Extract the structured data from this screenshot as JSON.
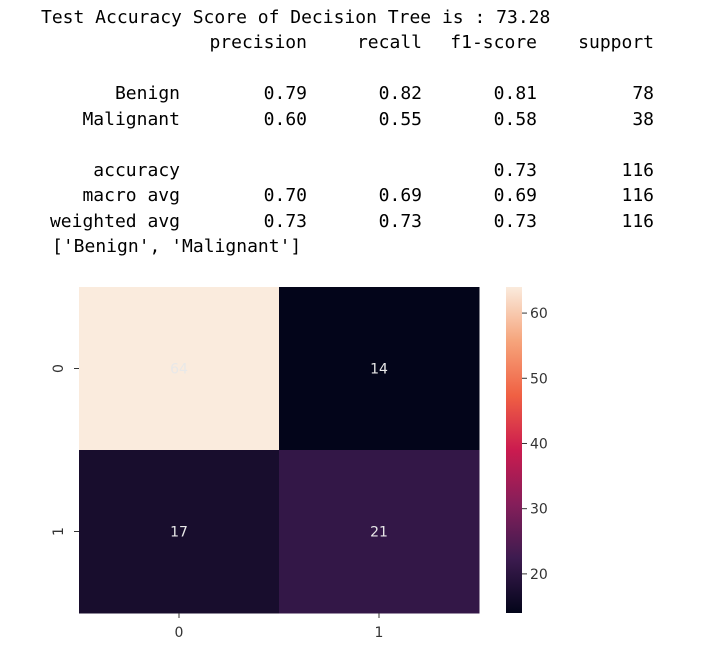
{
  "output": {
    "accuracy_line": "Test Accuracy Score of Decision Tree is : 73.28",
    "headers": [
      "precision",
      "recall",
      "f1-score",
      "support"
    ],
    "rows": [
      {
        "label": "Benign",
        "precision": "0.79",
        "recall": "0.82",
        "f1": "0.81",
        "support": "78"
      },
      {
        "label": "Malignant",
        "precision": "0.60",
        "recall": "0.55",
        "f1": "0.58",
        "support": "38"
      }
    ],
    "summary": [
      {
        "label": "accuracy",
        "precision": "",
        "recall": "",
        "f1": "0.73",
        "support": "116"
      },
      {
        "label": "macro avg",
        "precision": "0.70",
        "recall": "0.69",
        "f1": "0.69",
        "support": "116"
      },
      {
        "label": "weighted avg",
        "precision": "0.73",
        "recall": "0.73",
        "f1": "0.73",
        "support": "116"
      }
    ],
    "labels_list": "['Benign', 'Malignant']"
  },
  "chart_data": {
    "type": "heatmap",
    "title": "",
    "xlabel": "",
    "ylabel": "",
    "x_categories": [
      "0",
      "1"
    ],
    "y_categories": [
      "0",
      "1"
    ],
    "values": [
      [
        64,
        14
      ],
      [
        17,
        21
      ]
    ],
    "colorbar": {
      "min": 14,
      "max": 64,
      "ticks": [
        "20",
        "30",
        "40",
        "50",
        "60"
      ],
      "colormap": "rocket",
      "colors": [
        "#03051a",
        "#3c1b4f",
        "#851e5a",
        "#cb1b4f",
        "#f06043",
        "#f6a47b",
        "#faebdd"
      ]
    },
    "annotation_color": "#e8e8e8"
  }
}
